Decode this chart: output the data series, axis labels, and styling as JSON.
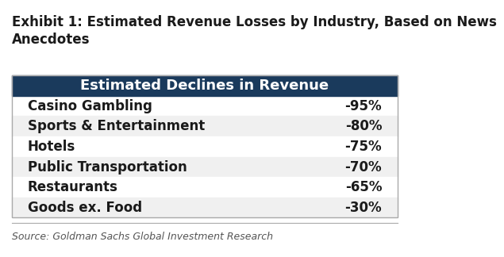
{
  "title": "Exhibit 1: Estimated Revenue Losses by Industry, Based on News\nAnecdotes",
  "header": "Estimated Declines in Revenue",
  "header_bg_color": "#1a3a5c",
  "header_text_color": "#ffffff",
  "rows": [
    {
      "industry": "Casino Gambling",
      "value": "-95%"
    },
    {
      "industry": "Sports & Entertainment",
      "value": "-80%"
    },
    {
      "industry": "Hotels",
      "value": "-75%"
    },
    {
      "industry": "Public Transportation",
      "value": "-70%"
    },
    {
      "industry": "Restaurants",
      "value": "-65%"
    },
    {
      "industry": "Goods ex. Food",
      "value": "-30%"
    }
  ],
  "row_colors": [
    "#ffffff",
    "#f0f0f0",
    "#ffffff",
    "#f0f0f0",
    "#ffffff",
    "#f0f0f0"
  ],
  "source_text": "Source: Goldman Sachs Global Investment Research",
  "title_fontsize": 12,
  "header_fontsize": 13,
  "row_fontsize": 12,
  "source_fontsize": 9,
  "table_border_color": "#aaaaaa",
  "background_color": "#ffffff",
  "text_color": "#1a1a1a"
}
